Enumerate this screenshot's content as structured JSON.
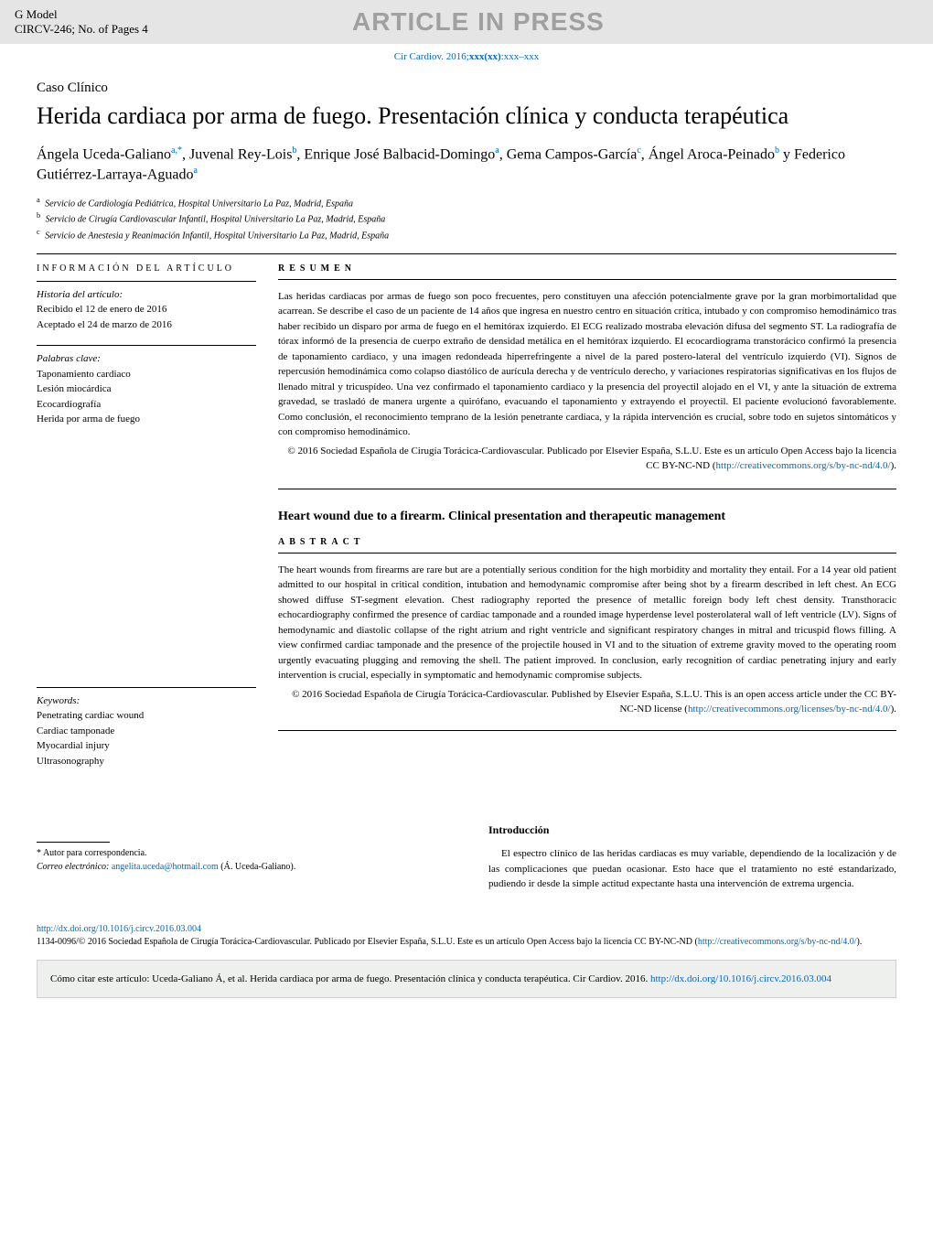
{
  "header": {
    "g_model": "G Model",
    "circv": "CIRCV-246;   No. of Pages 4",
    "banner": "ARTICLE IN PRESS",
    "journal_ref_prefix": "Cir Cardiov. 2016;",
    "journal_ref_bold": "xxx(xx)",
    "journal_ref_suffix": ":xxx–xxx"
  },
  "article": {
    "type": "Caso Clínico",
    "title": "Herida cardiaca por arma de fuego. Presentación clínica y conducta terapéutica",
    "authors_html": "Ángela Uceda-Galiano<sup>a,*</sup>, Juvenal Rey-Lois<sup>b</sup>, Enrique José Balbacid-Domingo<sup>a</sup>, Gema Campos-García<sup>c</sup>, Ángel Aroca-Peinado<sup>b</sup> y Federico Gutiérrez-Larraya-Aguado<sup>a</sup>",
    "affiliations": [
      {
        "sup": "a",
        "text": "Servicio de Cardiología Pediátrica, Hospital Universitario La Paz, Madrid, España"
      },
      {
        "sup": "b",
        "text": "Servicio de Cirugía Cardiovascular Infantil, Hospital Universitario La Paz, Madrid, España"
      },
      {
        "sup": "c",
        "text": "Servicio de Anestesia y Reanimación Infantil, Hospital Universitario La Paz, Madrid, España"
      }
    ]
  },
  "info": {
    "header": "INFORMACIÓN DEL ARTÍCULO",
    "history_label": "Historia del artículo:",
    "received": "Recibido el 12 de enero de 2016",
    "accepted": "Aceptado el 24 de marzo de 2016",
    "palabras_label": "Palabras clave:",
    "palabras": [
      "Taponamiento cardiaco",
      "Lesión miocárdica",
      "Ecocardiografía",
      "Herida por arma de fuego"
    ],
    "keywords_label": "Keywords:",
    "keywords": [
      "Penetrating cardiac wound",
      "Cardiac tamponade",
      "Myocardial injury",
      "Ultrasonography"
    ]
  },
  "resumen": {
    "header": "RESUMEN",
    "text": "Las heridas cardiacas por armas de fuego son poco frecuentes, pero constituyen una afección potencialmente grave por la gran morbimortalidad que acarrean. Se describe el caso de un paciente de 14 años que ingresa en nuestro centro en situación crítica, intubado y con compromiso hemodinámico tras haber recibido un disparo por arma de fuego en el hemitórax izquierdo. El ECG realizado mostraba elevación difusa del segmento ST. La radiografía de tórax informó de la presencia de cuerpo extraño de densidad metálica en el hemitórax izquierdo. El ecocardiograma transtorácico confirmó la presencia de taponamiento cardiaco, y una imagen redondeada hiperrefringente a nivel de la pared postero-lateral del ventrículo izquierdo (VI). Signos de repercusión hemodinámica como colapso diastólico de aurícula derecha y de ventrículo derecho, y variaciones respiratorias significativas en los flujos de llenado mitral y tricuspídeo. Una vez confirmado el taponamiento cardiaco y la presencia del proyectil alojado en el VI, y ante la situación de extrema gravedad, se trasladó de manera urgente a quirófano, evacuando el taponamiento y extrayendo el proyectil. El paciente evolucionó favorablemente. Como conclusión, el reconocimiento temprano de la lesión penetrante cardiaca, y la rápida intervención es crucial, sobre todo en sujetos sintomáticos y con compromiso hemodinámico.",
    "copyright": "© 2016 Sociedad Española de Cirugía Torácica-Cardiovascular. Publicado por Elsevier España, S.L.U. Este es un artículo Open Access bajo la licencia CC BY-NC-ND (",
    "license_url": "http://creativecommons.org/s/by-nc-nd/4.0/",
    "copyright_end": ")."
  },
  "english": {
    "title": "Heart wound due to a firearm. Clinical presentation and therapeutic management",
    "header": "ABSTRACT",
    "text": "The heart wounds from firearms are rare but are a potentially serious condition for the high morbidity and mortality they entail. For a 14 year old patient admitted to our hospital in critical condition, intubation and hemodynamic compromise after being shot by a firearm described in left chest. An ECG showed diffuse ST-segment elevation. Chest radiography reported the presence of metallic foreign body left chest density. Transthoracic echocardiography confirmed the presence of cardiac tamponade and a rounded image hyperdense level posterolateral wall of left ventricle (LV). Signs of hemodynamic and diastolic collapse of the right atrium and right ventricle and significant respiratory changes in mitral and tricuspid flows filling. A view confirmed cardiac tamponade and the presence of the projectile housed in VI and to the situation of extreme gravity moved to the operating room urgently evacuating plugging and removing the shell. The patient improved. In conclusion, early recognition of cardiac penetrating injury and early intervention is crucial, especially in symptomatic and hemodynamic compromise subjects.",
    "copyright": "© 2016 Sociedad Española de Cirugía Torácica-Cardiovascular. Published by Elsevier España, S.L.U. This is an open access article under the CC BY-NC-ND license (",
    "license_url": "http://creativecommons.org/licenses/by-nc-nd/4.0/",
    "copyright_end": ")."
  },
  "intro": {
    "heading": "Introducción",
    "text": "El espectro clínico de las heridas cardiacas es muy variable, dependiendo de la localización y de las complicaciones que puedan ocasionar. Esto hace que el tratamiento no esté estandarizado, pudiendo ir desde la simple actitud expectante hasta una intervención de extrema urgencia."
  },
  "corr": {
    "label": "* Autor para correspondencia.",
    "email_label": "Correo electrónico:",
    "email": "angelita.uceda@hotmail.com",
    "name": "(Á. Uceda-Galiano)."
  },
  "footer": {
    "doi_url": "http://dx.doi.org/10.1016/j.circv.2016.03.004",
    "issn_line": "1134-0096/© 2016 Sociedad Española de Cirugía Torácica-Cardiovascular. Publicado por Elsevier España, S.L.U. Este es un artículo Open Access bajo la licencia CC BY-NC-ND (",
    "license_url": "http://creativecommons.org/s/by-nc-nd/4.0/",
    "issn_end": ")."
  },
  "cite": {
    "text": "Cómo citar este artículo: Uceda-Galiano Á, et al. Herida cardiaca por arma de fuego. Presentación clínica y conducta terapéutica. Cir Cardiov. 2016. ",
    "url": "http://dx.doi.org/10.1016/j.circv.2016.03.004"
  },
  "colors": {
    "header_bg": "#e5e5e5",
    "banner_text": "#a0a0a0",
    "link": "#0066cc",
    "cite_bg": "#eef0ed"
  }
}
